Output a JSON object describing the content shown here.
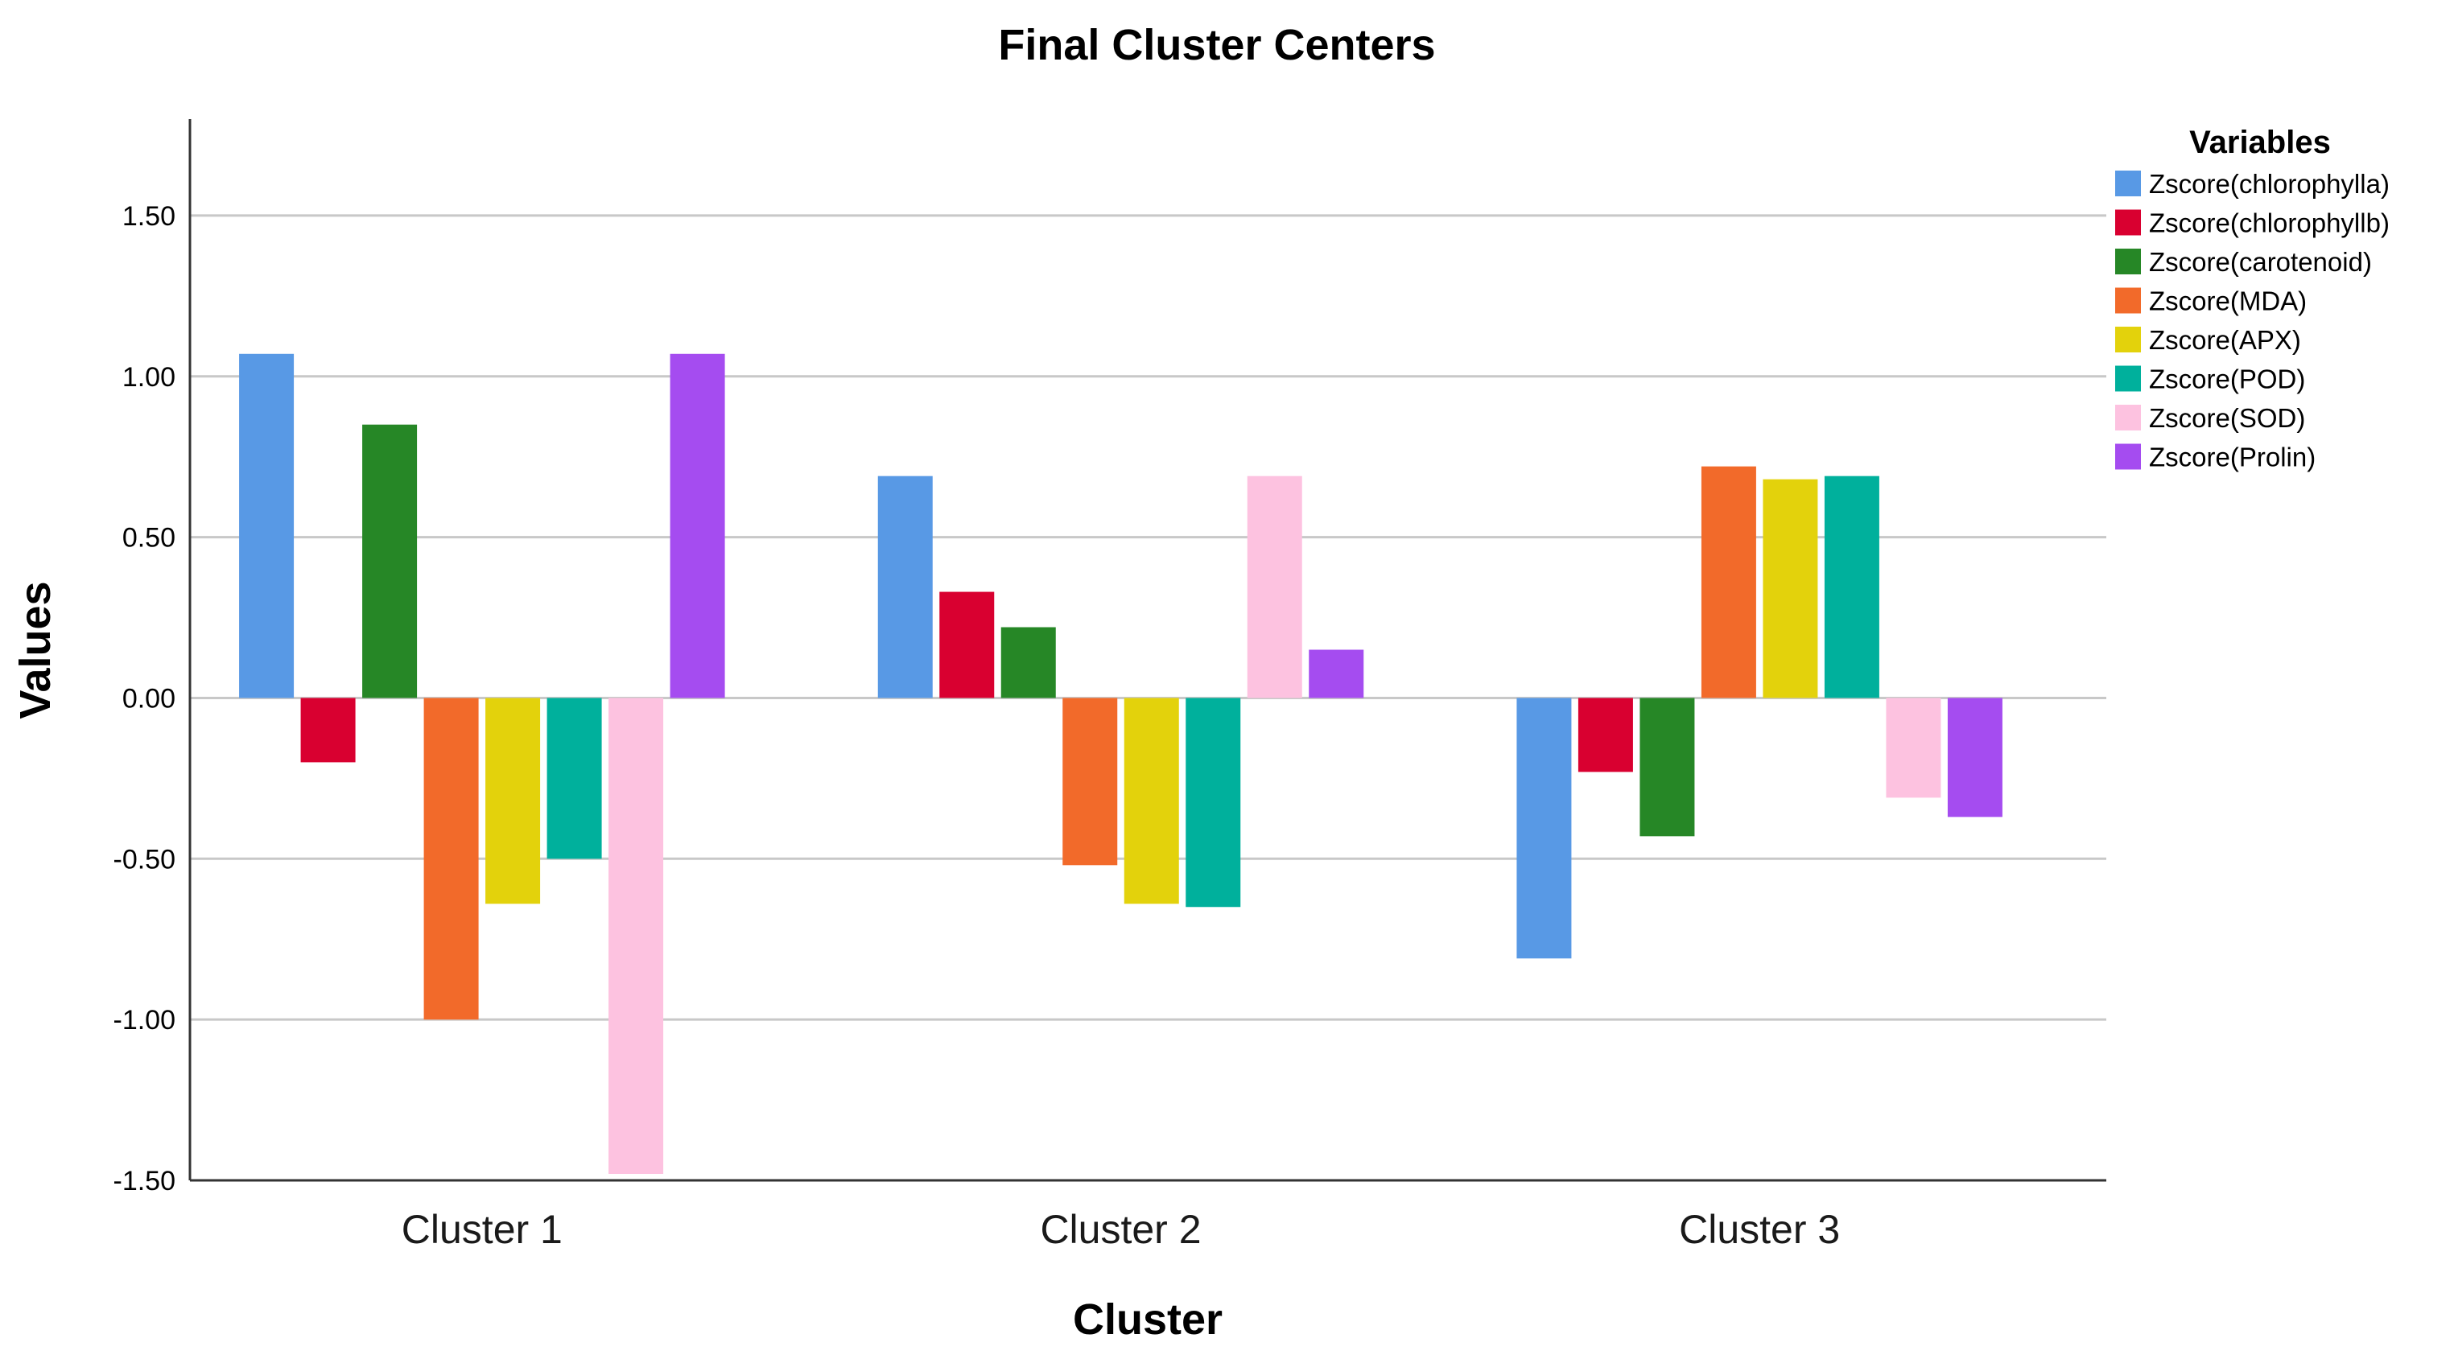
{
  "chart_data": {
    "type": "bar",
    "title": "Final Cluster Centers",
    "xlabel": "Cluster",
    "ylabel": "Values",
    "categories": [
      "Cluster 1",
      "Cluster 2",
      "Cluster 3"
    ],
    "ylim": [
      -1.5,
      1.8
    ],
    "yticks": [
      1.5,
      1.0,
      0.5,
      0.0,
      -0.5,
      -1.0,
      -1.5
    ],
    "ytick_labels": [
      "1.50",
      "1.00",
      "0.50",
      "0.00",
      "-0.50",
      "-1.00",
      "-1.50"
    ],
    "grid": true,
    "legend_title": "Variables",
    "legend_position": "right",
    "series": [
      {
        "name": "Zscore(chlorophylla)",
        "color": "#5899E5",
        "values": [
          1.07,
          0.69,
          -0.81
        ]
      },
      {
        "name": "Zscore(chlorophyllb)",
        "color": "#D90030",
        "values": [
          -0.2,
          0.33,
          -0.23
        ]
      },
      {
        "name": "Zscore(carotenoid)",
        "color": "#268726",
        "values": [
          0.85,
          0.22,
          -0.43
        ]
      },
      {
        "name": "Zscore(MDA)",
        "color": "#F26A2A",
        "values": [
          -1.0,
          -0.52,
          0.72
        ]
      },
      {
        "name": "Zscore(APX)",
        "color": "#E3D20C",
        "values": [
          -0.64,
          -0.64,
          0.68
        ]
      },
      {
        "name": "Zscore(POD)",
        "color": "#00B09C",
        "values": [
          -0.5,
          -0.65,
          0.69
        ]
      },
      {
        "name": "Zscore(SOD)",
        "color": "#FDC2E0",
        "values": [
          -1.48,
          0.69,
          -0.31
        ]
      },
      {
        "name": "Zscore(Prolin)",
        "color": "#A54CF0",
        "values": [
          1.07,
          0.15,
          -0.37
        ]
      }
    ]
  }
}
